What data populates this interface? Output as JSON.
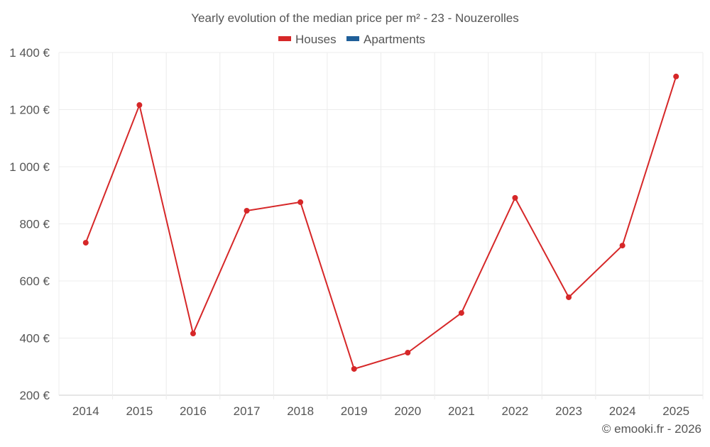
{
  "chart_data": {
    "type": "line",
    "title": "Yearly evolution of the median price per m² - 23 - Nouzerolles",
    "legend": [
      {
        "name": "Houses",
        "color": "#d62728"
      },
      {
        "name": "Apartments",
        "color": "#1f5f99"
      }
    ],
    "legend_position": "top-center",
    "categories": [
      "2014",
      "2015",
      "2016",
      "2017",
      "2018",
      "2019",
      "2020",
      "2021",
      "2022",
      "2023",
      "2024",
      "2025"
    ],
    "series": [
      {
        "name": "Houses",
        "color": "#d62728",
        "values": [
          734,
          1216,
          416,
          846,
          876,
          292,
          349,
          488,
          891,
          543,
          724,
          1316
        ]
      }
    ],
    "ylim": [
      200,
      1400
    ],
    "yticks": [
      200,
      400,
      600,
      800,
      1000,
      1200,
      1400
    ],
    "ytick_labels": [
      "200 €",
      "400 €",
      "600 €",
      "800 €",
      "1 000 €",
      "1 200 €",
      "1 400 €"
    ],
    "grid": true,
    "xlabel": "",
    "ylabel": ""
  },
  "credit": "© emooki.fr - 2026"
}
